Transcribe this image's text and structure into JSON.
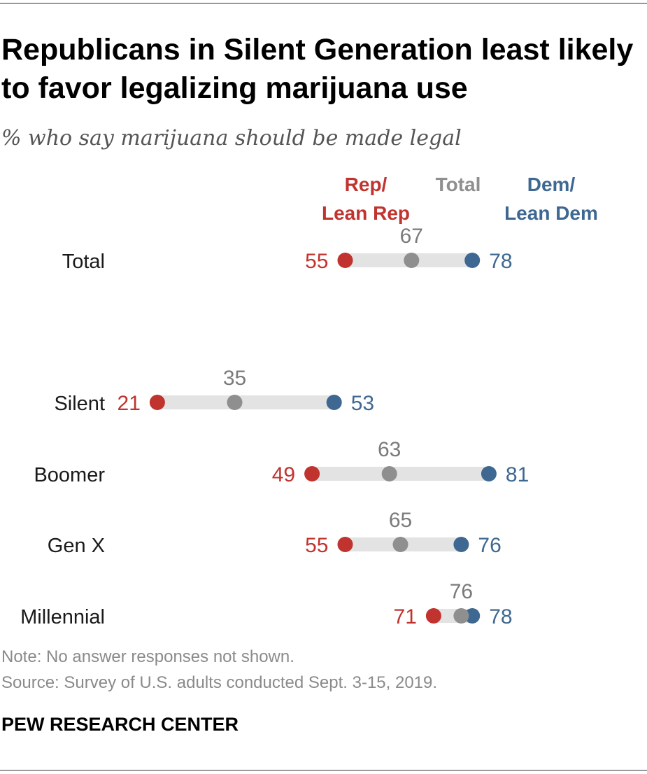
{
  "title": "Republicans in Silent Generation least likely to favor legalizing marijuana use",
  "subtitle": "% who say marijuana should be made legal",
  "note": "Note: No answer responses not shown.",
  "source": "Source: Survey of U.S. adults conducted Sept. 3-15, 2019.",
  "brand": "PEW RESEARCH CENTER",
  "colors": {
    "rep": "#c0332e",
    "total": "#8f8f8f",
    "dem": "#3e6891",
    "bar": "#e3e3e3"
  },
  "chart_data": {
    "type": "dot",
    "legend": {
      "rep": [
        "Rep/",
        "Lean Rep"
      ],
      "total": [
        "Total"
      ],
      "dem": [
        "Dem/",
        "Lean Dem"
      ]
    },
    "categories": [
      "Total",
      "Silent",
      "Boomer",
      "Gen X",
      "Millennial"
    ],
    "series": [
      {
        "name": "Rep/Lean Rep",
        "key": "rep",
        "values": [
          55,
          21,
          49,
          55,
          71
        ]
      },
      {
        "name": "Total",
        "key": "total",
        "values": [
          67,
          35,
          63,
          65,
          76
        ]
      },
      {
        "name": "Dem/Lean Dem",
        "key": "dem",
        "values": [
          78,
          53,
          81,
          76,
          78
        ]
      }
    ]
  }
}
